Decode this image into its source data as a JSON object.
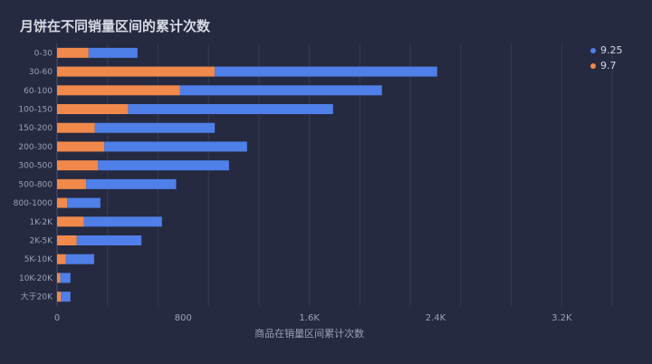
{
  "chart_data": {
    "type": "bar",
    "orientation": "horizontal",
    "stacked": true,
    "title": "月饼在不同销量区间的累计次数",
    "xlabel": "商品在销量区间累计次数",
    "ylabel": "",
    "xlim": [
      0,
      3600
    ],
    "xticks": [
      "0",
      "800",
      "1.6K",
      "2.4K",
      "3.2K"
    ],
    "xtick_values": [
      0,
      800,
      1600,
      2400,
      3200
    ],
    "grid_values": [
      0,
      320,
      640,
      960,
      1280,
      1600,
      1920,
      2240,
      2560,
      2880,
      3200,
      3520
    ],
    "categories": [
      "0-30",
      "30-60",
      "60-100",
      "100-150",
      "150-200",
      "200-300",
      "300-500",
      "500-800",
      "800-1000",
      "1K-2K",
      "2K-5K",
      "5K-10K",
      "10K-20K",
      "大于20K"
    ],
    "series": [
      {
        "name": "9.7",
        "color": "#f0894b",
        "values": [
          200,
          1000,
          780,
          450,
          240,
          300,
          260,
          185,
          65,
          170,
          125,
          55,
          20,
          25
        ]
      },
      {
        "name": "9.25",
        "color": "#4f7fe8",
        "values": [
          310,
          1410,
          1280,
          1300,
          760,
          905,
          830,
          570,
          210,
          495,
          410,
          180,
          65,
          60
        ]
      }
    ],
    "legend": [
      "9.25",
      "9.7"
    ],
    "legend_position": "top-right"
  }
}
